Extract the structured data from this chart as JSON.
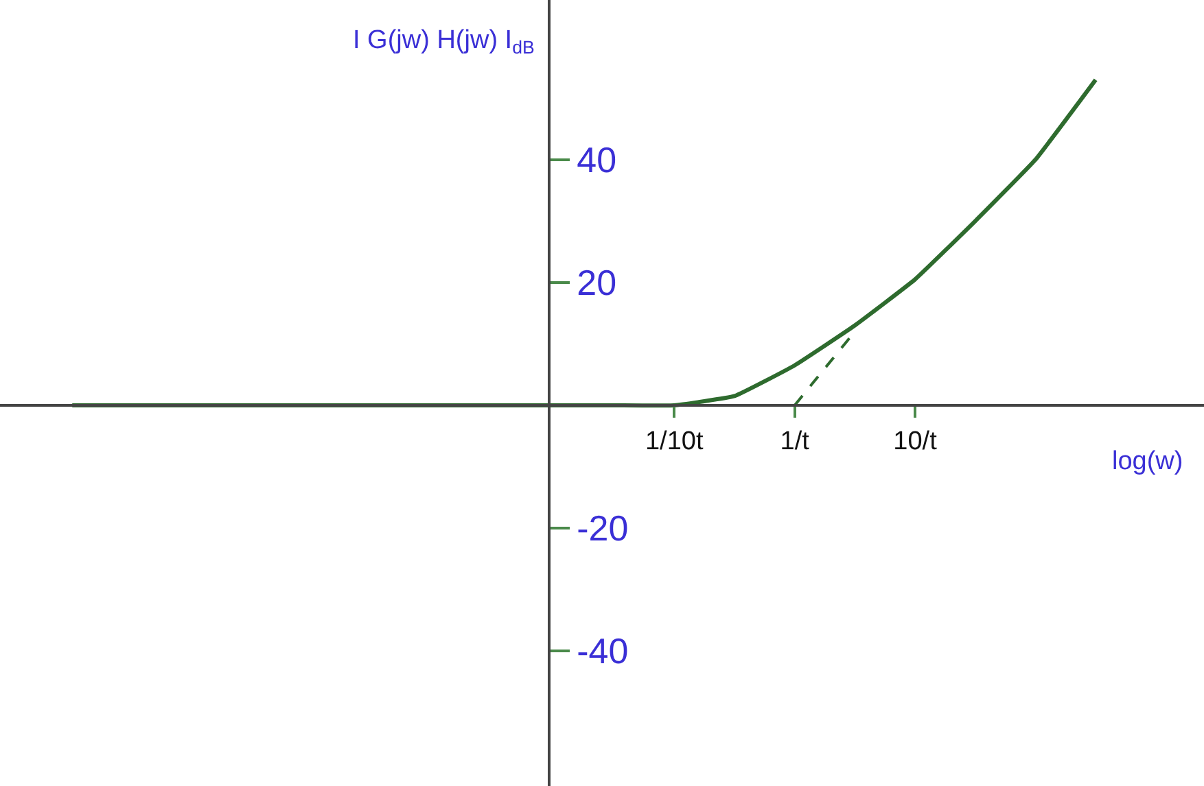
{
  "chart_data": {
    "type": "line",
    "xlabel": "log(w)",
    "ylabel": "I G(jw) H(jw) I$_{dB}$",
    "categories": [
      null,
      null,
      null,
      null,
      null,
      null,
      null,
      null,
      null,
      null,
      "1/10t",
      null,
      "1/t",
      null,
      "10/t",
      null,
      null,
      null
    ],
    "ylim": [
      -62,
      66
    ],
    "yticks": [
      -40,
      -20,
      40,
      20
    ],
    "marker": "none",
    "series": [
      {
        "color": "#2e6b2e",
        "line_style": "solid",
        "values": [
          0,
          0,
          0,
          0,
          0,
          0,
          0,
          0,
          0,
          0,
          0,
          1.5,
          6.5,
          13,
          20.5,
          30,
          40,
          53
        ]
      },
      {
        "color": "#2e6b2e",
        "line_style": "dashed",
        "values": [
          null,
          null,
          null,
          null,
          null,
          null,
          null,
          null,
          null,
          null,
          null,
          null,
          0,
          12,
          null,
          null,
          null,
          null
        ]
      }
    ]
  }
}
